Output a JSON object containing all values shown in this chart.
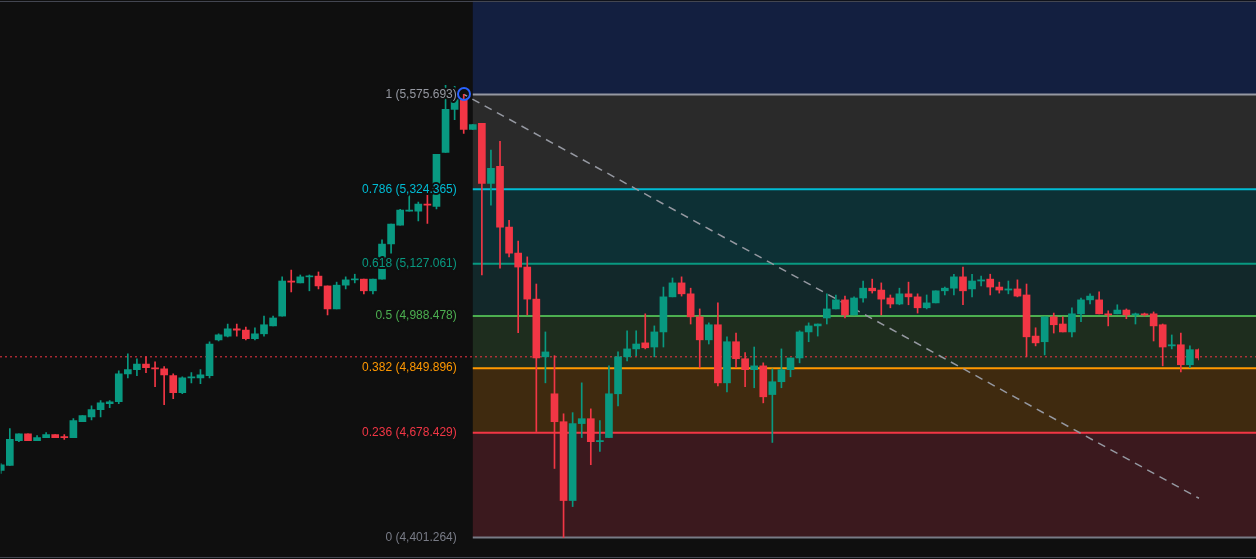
{
  "chart_data": {
    "type": "candlestick",
    "categories": [
      null,
      null,
      null,
      null,
      null,
      null,
      null,
      null,
      null,
      null,
      null,
      null,
      null,
      null,
      null,
      null,
      null,
      null,
      null,
      null,
      null,
      null,
      null,
      null,
      null,
      null,
      null,
      null,
      null,
      null,
      null,
      null,
      null,
      null,
      null,
      null,
      null,
      null,
      null,
      null,
      null,
      null,
      null,
      null,
      null,
      null,
      null,
      null,
      null,
      null,
      null,
      null,
      null,
      null,
      null,
      null,
      null,
      null,
      null,
      null,
      null,
      null,
      null,
      null,
      null,
      null,
      null,
      null,
      null,
      null,
      null,
      null,
      null,
      null,
      null,
      null,
      null,
      null,
      null,
      null,
      null,
      null,
      null,
      null,
      null,
      null,
      null,
      null,
      null,
      null,
      null,
      null,
      null,
      null,
      null,
      null,
      null,
      null,
      null,
      null,
      null,
      null,
      null,
      null,
      null,
      null,
      null,
      null,
      null,
      null,
      null,
      null,
      null,
      null,
      null,
      null,
      null,
      null,
      null,
      null,
      null,
      null,
      null,
      null,
      null,
      null,
      null,
      null,
      null,
      null,
      null,
      null,
      null
    ],
    "ohlc": [
      [
        4579,
        4597,
        4571,
        4594
      ],
      [
        4592,
        4690,
        4592,
        4661
      ],
      [
        4658,
        4676,
        4655,
        4676
      ],
      [
        4676,
        4676,
        4658,
        4658
      ],
      [
        4658,
        4671,
        4658,
        4666
      ],
      [
        4666,
        4679,
        4666,
        4674
      ],
      [
        4674,
        4674,
        4666,
        4666
      ],
      [
        4668,
        4674,
        4661,
        4666
      ],
      [
        4666,
        4716,
        4666,
        4711
      ],
      [
        4708,
        4724,
        4708,
        4724
      ],
      [
        4721,
        4750,
        4713,
        4740
      ],
      [
        4740,
        4764,
        4721,
        4758
      ],
      [
        4756,
        4764,
        4745,
        4761
      ],
      [
        4761,
        4843,
        4756,
        4835
      ],
      [
        4835,
        4888,
        4824,
        4846
      ],
      [
        4846,
        4875,
        4830,
        4861
      ],
      [
        4861,
        4880,
        4838,
        4851
      ],
      [
        4851,
        4867,
        4801,
        4848
      ],
      [
        4848,
        4854,
        4753,
        4832
      ],
      [
        4830,
        4835,
        4769,
        4785
      ],
      [
        4785,
        4827,
        4782,
        4824
      ],
      [
        4824,
        4838,
        4811,
        4827
      ],
      [
        4824,
        4846,
        4809,
        4832
      ],
      [
        4830,
        4920,
        4824,
        4914
      ],
      [
        4925,
        4941,
        4922,
        4938
      ],
      [
        4935,
        4967,
        4933,
        4954
      ],
      [
        4954,
        4967,
        4935,
        4951
      ],
      [
        4951,
        4959,
        4925,
        4928
      ],
      [
        4928,
        4957,
        4925,
        4941
      ],
      [
        4941,
        4988,
        4935,
        4965
      ],
      [
        4962,
        4988,
        4962,
        4983
      ],
      [
        4988,
        5092,
        4988,
        5081
      ],
      [
        5081,
        5110,
        5052,
        5078
      ],
      [
        5076,
        5097,
        5076,
        5092
      ],
      [
        5092,
        5097,
        5055,
        5094
      ],
      [
        5094,
        5105,
        5060,
        5068
      ],
      [
        5068,
        5068,
        4991,
        5007
      ],
      [
        5007,
        5078,
        5007,
        5070
      ],
      [
        5070,
        5092,
        5060,
        5084
      ],
      [
        5084,
        5099,
        5076,
        5086
      ],
      [
        5086,
        5086,
        5047,
        5055
      ],
      [
        5055,
        5086,
        5047,
        5086
      ],
      [
        5086,
        5190,
        5086,
        5179
      ],
      [
        5179,
        5232,
        5155,
        5232
      ],
      [
        5229,
        5271,
        5229,
        5269
      ],
      [
        5266,
        5311,
        5266,
        5269
      ],
      [
        5266,
        5290,
        5240,
        5285
      ],
      [
        5285,
        5314,
        5234,
        5282
      ],
      [
        5279,
        5417,
        5272,
        5417
      ],
      [
        5422,
        5600,
        5422,
        5536
      ],
      [
        5536,
        5597,
        5509,
        5562
      ],
      [
        5560,
        5576,
        5472,
        5483
      ],
      [
        5483,
        5496,
        5483,
        5496
      ],
      [
        5499,
        5499,
        5097,
        5340
      ],
      [
        5340,
        5428,
        5282,
        5380
      ],
      [
        5385,
        5451,
        5115,
        5224
      ],
      [
        5224,
        5242,
        5145,
        5155
      ],
      [
        5155,
        5187,
        4944,
        5118
      ],
      [
        5118,
        5145,
        4991,
        5033
      ],
      [
        5033,
        5073,
        4682,
        4877
      ],
      [
        4880,
        4946,
        4811,
        4893
      ],
      [
        4782,
        4883,
        4584,
        4708
      ],
      [
        4708,
        4729,
        4401,
        4499
      ],
      [
        4499,
        4732,
        4483,
        4703
      ],
      [
        4703,
        4811,
        4666,
        4716
      ],
      [
        4716,
        4742,
        4594,
        4655
      ],
      [
        4655,
        4711,
        4629,
        4658
      ],
      [
        4666,
        4856,
        4666,
        4782
      ],
      [
        4782,
        4893,
        4750,
        4880
      ],
      [
        4880,
        4949,
        4869,
        4901
      ],
      [
        4901,
        4949,
        4883,
        4914
      ],
      [
        4917,
        4994,
        4901,
        4904
      ],
      [
        4906,
        4962,
        4880,
        4946
      ],
      [
        4946,
        5065,
        4906,
        5039
      ],
      [
        5039,
        5089,
        5039,
        5076
      ],
      [
        5076,
        5092,
        5041,
        5047
      ],
      [
        5047,
        5062,
        4967,
        4986
      ],
      [
        4986,
        5007,
        4851,
        4925
      ],
      [
        4925,
        4970,
        4914,
        4965
      ],
      [
        4965,
        5023,
        4803,
        4811
      ],
      [
        4811,
        4933,
        4787,
        4920
      ],
      [
        4920,
        4943,
        4851,
        4875
      ],
      [
        4875,
        4891,
        4801,
        4846
      ],
      [
        4846,
        4906,
        4798,
        4856
      ],
      [
        4856,
        4864,
        4758,
        4774
      ],
      [
        4780,
        4848,
        4653,
        4814
      ],
      [
        4814,
        4901,
        4798,
        4846
      ],
      [
        4846,
        4877,
        4827,
        4877
      ],
      [
        4877,
        4949,
        4864,
        4946
      ],
      [
        4946,
        4970,
        4920,
        4962
      ],
      [
        4962,
        4967,
        4935,
        4967
      ],
      [
        4983,
        5047,
        4967,
        5007
      ],
      [
        5007,
        5044,
        5007,
        5031
      ],
      [
        5031,
        5041,
        4983,
        4991
      ],
      [
        4991,
        5039,
        4991,
        5036
      ],
      [
        5036,
        5081,
        5025,
        5062
      ],
      [
        5062,
        5086,
        5049,
        5055
      ],
      [
        5057,
        5076,
        4991,
        5033
      ],
      [
        5036,
        5044,
        5010,
        5020
      ],
      [
        5020,
        5062,
        5018,
        5047
      ],
      [
        5047,
        5078,
        5018,
        5039
      ],
      [
        5039,
        5047,
        4996,
        5010
      ],
      [
        5010,
        5044,
        5007,
        5023
      ],
      [
        5023,
        5055,
        5023,
        5055
      ],
      [
        5055,
        5065,
        5044,
        5062
      ],
      [
        5062,
        5099,
        5044,
        5092
      ],
      [
        5092,
        5118,
        5018,
        5055
      ],
      [
        5060,
        5099,
        5039,
        5081
      ],
      [
        5081,
        5094,
        5068,
        5084
      ],
      [
        5086,
        5099,
        5044,
        5065
      ],
      [
        5065,
        5078,
        5049,
        5057
      ],
      [
        5057,
        5081,
        5047,
        5060
      ],
      [
        5060,
        5084,
        5039,
        5041
      ],
      [
        5044,
        5073,
        4880,
        4933
      ],
      [
        4935,
        4957,
        4909,
        4917
      ],
      [
        4920,
        4986,
        4885,
        4986
      ],
      [
        4986,
        4996,
        4943,
        4965
      ],
      [
        4967,
        4986,
        4946,
        4946
      ],
      [
        4946,
        5010,
        4933,
        4994
      ],
      [
        4994,
        5036,
        4973,
        5031
      ],
      [
        5031,
        5047,
        5020,
        5041
      ],
      [
        5031,
        5052,
        4994,
        4994
      ],
      [
        4994,
        5002,
        4962,
        4991
      ],
      [
        4994,
        5018,
        4994,
        5004
      ],
      [
        5004,
        5007,
        4981,
        4991
      ],
      [
        4991,
        4996,
        4967,
        4994
      ],
      [
        4994,
        4996,
        4988,
        4991
      ],
      [
        4994,
        4999,
        4922,
        4962
      ],
      [
        4965,
        4967,
        4856,
        4906
      ],
      [
        4909,
        4938,
        4901,
        4912
      ],
      [
        4912,
        4943,
        4840,
        4859
      ],
      [
        4859,
        4909,
        4851,
        4899
      ],
      [
        4899,
        4901,
        4872,
        4877
      ]
    ],
    "colors": [
      "#089981",
      "#089981",
      "#089981",
      "#f23645",
      "#089981",
      "#089981",
      "#f23645",
      "#f23645",
      "#089981",
      "#089981",
      "#089981",
      "#089981",
      "#089981",
      "#089981",
      "#089981",
      "#089981",
      "#f23645",
      "#f23645",
      "#f23645",
      "#f23645",
      "#089981",
      "#089981",
      "#089981",
      "#089981",
      "#089981",
      "#089981",
      "#f23645",
      "#f23645",
      "#089981",
      "#089981",
      "#089981",
      "#089981",
      "#f23645",
      "#089981",
      "#089981",
      "#f23645",
      "#f23645",
      "#089981",
      "#089981",
      "#089981",
      "#f23645",
      "#089981",
      "#089981",
      "#089981",
      "#089981",
      "#089981",
      "#089981",
      "#f23645",
      "#089981",
      "#089981",
      "#089981",
      "#f23645",
      "#089981",
      "#f23645",
      "#089981",
      "#f23645",
      "#f23645",
      "#f23645",
      "#f23645",
      "#f23645",
      "#089981",
      "#f23645",
      "#f23645",
      "#089981",
      "#089981",
      "#f23645",
      "#089981",
      "#089981",
      "#089981",
      "#089981",
      "#089981",
      "#f23645",
      "#089981",
      "#089981",
      "#089981",
      "#f23645",
      "#f23645",
      "#f23645",
      "#089981",
      "#f23645",
      "#089981",
      "#f23645",
      "#f23645",
      "#089981",
      "#f23645",
      "#089981",
      "#089981",
      "#089981",
      "#089981",
      "#089981",
      "#089981",
      "#089981",
      "#089981",
      "#f23645",
      "#089981",
      "#089981",
      "#f23645",
      "#f23645",
      "#f23645",
      "#089981",
      "#f23645",
      "#f23645",
      "#089981",
      "#089981",
      "#089981",
      "#089981",
      "#f23645",
      "#089981",
      "#089981",
      "#f23645",
      "#f23645",
      "#089981",
      "#f23645",
      "#f23645",
      "#f23645",
      "#089981",
      "#f23645",
      "#f23645",
      "#089981",
      "#089981",
      "#089981",
      "#f23645",
      "#f23645",
      "#089981",
      "#f23645",
      "#089981",
      "#f23645",
      "#f23645",
      "#f23645",
      "#089981",
      "#f23645",
      "#089981",
      "#f23645"
    ],
    "series": [
      {
        "type": "line",
        "color": "#9598a1",
        "line_style": "dashed",
        "values": [
          null,
          null,
          null,
          null,
          null,
          null,
          null,
          null,
          null,
          null,
          null,
          null,
          null,
          null,
          null,
          null,
          null,
          null,
          null,
          null,
          null,
          null,
          null,
          null,
          null,
          null,
          null,
          null,
          null,
          null,
          null,
          null,
          null,
          null,
          null,
          null,
          null,
          null,
          null,
          null,
          null,
          null,
          null,
          null,
          null,
          null,
          null,
          null,
          null,
          null,
          null,
          5576,
          null,
          null,
          null,
          null,
          null,
          null,
          null,
          null,
          null,
          null,
          null,
          null,
          null,
          null,
          null,
          null,
          null,
          null,
          null,
          null,
          null,
          null,
          null,
          null,
          null,
          null,
          null,
          null,
          null,
          null,
          null,
          null,
          null,
          null,
          null,
          null,
          null,
          null,
          null,
          null,
          null,
          null,
          null,
          null,
          null,
          null,
          null,
          null,
          null,
          null,
          null,
          null,
          null,
          null,
          null,
          null,
          null,
          null,
          null,
          null,
          null,
          null,
          null,
          null,
          null,
          null,
          null,
          null,
          null,
          null,
          null,
          null,
          null,
          null,
          null,
          null,
          null,
          null,
          null,
          null,
          4505
        ]
      }
    ],
    "ylim": [
      4346,
      5824
    ],
    "tick_labels": false,
    "ref_lines": [
      {
        "axis": "y",
        "value": 5575.693,
        "label": "1 (5,575.693)",
        "color": "#9598a1"
      },
      {
        "axis": "y",
        "value": 5324.365,
        "label": "0.786 (5,324.365)",
        "color": "#00bcd4"
      },
      {
        "axis": "y",
        "value": 5127.061,
        "label": "0.618 (5,127.061)",
        "color": "#089981"
      },
      {
        "axis": "y",
        "value": 4988.478,
        "label": "0.5 (4,988.478)",
        "color": "#4caf50"
      },
      {
        "axis": "y",
        "value": 4849.896,
        "label": "0.382 (4,849.896)",
        "color": "#ff9800"
      },
      {
        "axis": "y",
        "value": 4678.429,
        "label": "0.236 (4,678.429)",
        "color": "#f23645"
      },
      {
        "axis": "y",
        "value": 4401.264,
        "label": "0 (4,401.264)",
        "color": "#787b86"
      },
      {
        "axis": "y",
        "value": 4880,
        "color": "#f23645",
        "line_style": "dotted"
      }
    ],
    "bands": [
      {
        "axis": "y",
        "from": 5575.693,
        "to": 5824,
        "color": "#131f40"
      },
      {
        "axis": "y",
        "from": 5324.365,
        "to": 5575.693,
        "color": "#2a2a2a"
      },
      {
        "axis": "y",
        "from": 5127.061,
        "to": 5324.365,
        "color": "#0d3035"
      },
      {
        "axis": "y",
        "from": 4988.478,
        "to": 5127.061,
        "color": "#12282a"
      },
      {
        "axis": "y",
        "from": 4849.896,
        "to": 4988.478,
        "color": "#1e2d1e"
      },
      {
        "axis": "y",
        "from": 4678.429,
        "to": 4849.896,
        "color": "#3f2a0f"
      },
      {
        "axis": "y",
        "from": 4401.264,
        "to": 4678.429,
        "color": "#3b191e"
      }
    ]
  }
}
